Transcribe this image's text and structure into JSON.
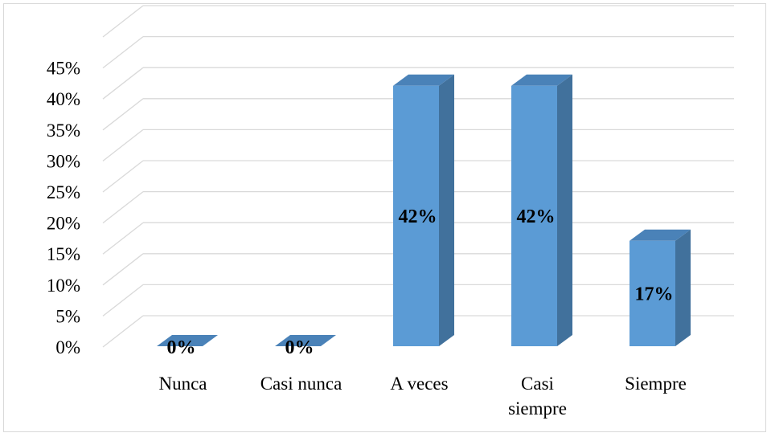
{
  "chart_data": {
    "type": "bar",
    "style": "3d-column",
    "categories": [
      "Nunca",
      "Casi nunca",
      "A veces",
      "Casi siempre",
      "Siempre"
    ],
    "category_lines": [
      [
        "Nunca"
      ],
      [
        "Casi nunca"
      ],
      [
        "A veces"
      ],
      [
        "Casi",
        "siempre"
      ],
      [
        "Siempre"
      ]
    ],
    "values": [
      0,
      0,
      42,
      42,
      17
    ],
    "data_labels": [
      "0%",
      "0%",
      "42%",
      "42%",
      "17%"
    ],
    "y_ticks": [
      "0%",
      "5%",
      "10%",
      "15%",
      "20%",
      "25%",
      "30%",
      "35%",
      "40%",
      "45%"
    ],
    "ylim": [
      0,
      50
    ],
    "title": "",
    "xlabel": "",
    "ylabel": "",
    "grid": true,
    "legend": "none",
    "colors": {
      "bar_front": "#5b9bd5",
      "bar_side": "#41719c",
      "bar_top": "#4a82b8",
      "gridline": "#d9d9d9"
    }
  }
}
